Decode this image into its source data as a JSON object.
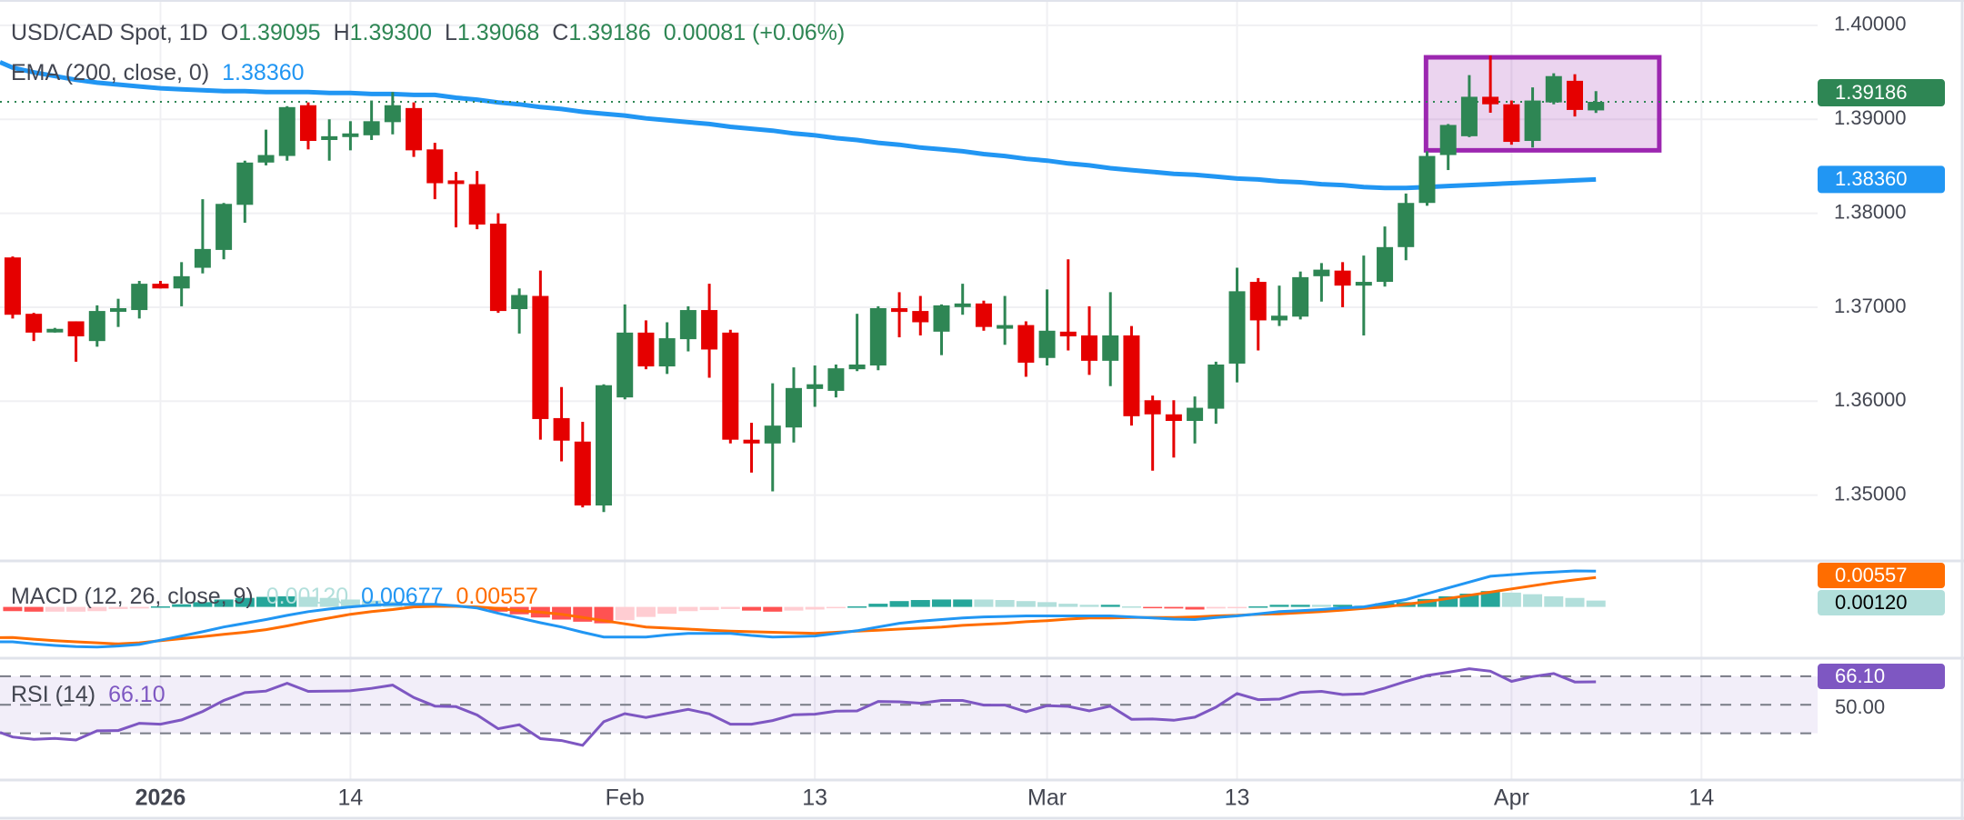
{
  "header": {
    "symbol": "USD/CAD Spot, 1D",
    "o_label": "O",
    "o": "1.39095",
    "h_label": "H",
    "h": "1.39300",
    "l_label": "L",
    "l": "1.39068",
    "c_label": "C",
    "c": "1.39186",
    "change": "0.00081 (+0.06%)"
  },
  "indicators": {
    "ema": {
      "label": "EMA (200, close, 0)",
      "value": "1.38360"
    },
    "macd": {
      "label": "MACD (12, 26, close, 9)",
      "histogram": "0.00120",
      "macd": "0.00677",
      "signal": "0.00557"
    },
    "rsi": {
      "label": "RSI (14)",
      "value": "66.10"
    }
  },
  "price_axis": {
    "ticks": [
      "1.40000",
      "1.39000",
      "1.38000",
      "1.37000",
      "1.36000",
      "1.35000"
    ],
    "current_price_label": "1.39186",
    "ema_label": "1.38360"
  },
  "macd_axis": {
    "signal_label": "0.00557",
    "histogram_label": "0.00120"
  },
  "rsi_axis": {
    "level_label": "50.00",
    "value_label": "66.10"
  },
  "colors": {
    "up": "#2e8654",
    "down": "#e50000",
    "ema": "#2196f3",
    "macd": "#2196f3",
    "signal": "#ff6d00",
    "hist_up_strong": "#26a69a",
    "hist_up_weak": "#b2dfdb",
    "hist_down_strong": "#ff5252",
    "hist_down_weak": "#ffcdd2",
    "rsi": "#7e57c2",
    "highlight_box": "#9c27b0",
    "grid": "#f0f0f3",
    "text": "#434651"
  },
  "chart_data": {
    "type": "candlestick",
    "ylim": [
      1.343,
      1.4027
    ],
    "xlim": [
      -0.6,
      85.5
    ],
    "y_ticks": [
      1.35,
      1.36,
      1.37,
      1.38,
      1.39,
      1.4
    ],
    "x_ticks": [
      {
        "label": "2026",
        "index": 7,
        "bold": true
      },
      {
        "label": "14",
        "index": 16
      },
      {
        "label": "Feb",
        "index": 29
      },
      {
        "label": "13",
        "index": 38
      },
      {
        "label": "Mar",
        "index": 49
      },
      {
        "label": "13",
        "index": 58
      },
      {
        "label": "Apr",
        "index": 71
      },
      {
        "label": "14",
        "index": 80
      }
    ],
    "ohlc": [
      [
        1.3753,
        1.3754,
        1.3688,
        1.3692
      ],
      [
        1.3693,
        1.3694,
        1.3664,
        1.3673
      ],
      [
        1.3675,
        1.3678,
        1.3673,
        1.3677
      ],
      [
        1.3685,
        1.3685,
        1.3642,
        1.3669
      ],
      [
        1.3664,
        1.3702,
        1.3658,
        1.3696
      ],
      [
        1.3696,
        1.3709,
        1.3679,
        1.3699
      ],
      [
        1.3697,
        1.3728,
        1.3688,
        1.3725
      ],
      [
        1.3725,
        1.3728,
        1.372,
        1.372
      ],
      [
        1.372,
        1.3748,
        1.3701,
        1.3733
      ],
      [
        1.3742,
        1.3815,
        1.3736,
        1.3762
      ],
      [
        1.3761,
        1.3811,
        1.3751,
        1.381
      ],
      [
        1.3809,
        1.3856,
        1.379,
        1.3854
      ],
      [
        1.3854,
        1.3889,
        1.3851,
        1.3862
      ],
      [
        1.3861,
        1.3914,
        1.3856,
        1.3913
      ],
      [
        1.3915,
        1.3918,
        1.3868,
        1.3877
      ],
      [
        1.3878,
        1.39,
        1.3856,
        1.3882
      ],
      [
        1.3884,
        1.3898,
        1.3867,
        1.3885
      ],
      [
        1.3883,
        1.392,
        1.3878,
        1.3898
      ],
      [
        1.3897,
        1.3929,
        1.3884,
        1.3915
      ],
      [
        1.3912,
        1.3918,
        1.386,
        1.3867
      ],
      [
        1.3868,
        1.3875,
        1.3815,
        1.3832
      ],
      [
        1.3835,
        1.3844,
        1.3785,
        1.3833
      ],
      [
        1.3831,
        1.3845,
        1.3783,
        1.3788
      ],
      [
        1.3789,
        1.38,
        1.3694,
        1.3696
      ],
      [
        1.3698,
        1.372,
        1.3672,
        1.3713
      ],
      [
        1.3712,
        1.3739,
        1.3559,
        1.3581
      ],
      [
        1.3582,
        1.3615,
        1.3536,
        1.3558
      ],
      [
        1.3557,
        1.3578,
        1.3487,
        1.3489
      ],
      [
        1.3489,
        1.3618,
        1.3482,
        1.3617
      ],
      [
        1.3604,
        1.3703,
        1.3602,
        1.3673
      ],
      [
        1.3673,
        1.3686,
        1.3634,
        1.3637
      ],
      [
        1.3637,
        1.3684,
        1.3629,
        1.3667
      ],
      [
        1.3666,
        1.3701,
        1.3653,
        1.3697
      ],
      [
        1.3697,
        1.3725,
        1.3625,
        1.3655
      ],
      [
        1.3673,
        1.3676,
        1.3555,
        1.3559
      ],
      [
        1.3559,
        1.3577,
        1.3524,
        1.3555
      ],
      [
        1.3555,
        1.3619,
        1.3504,
        1.3574
      ],
      [
        1.3572,
        1.3636,
        1.3556,
        1.3614
      ],
      [
        1.3613,
        1.3638,
        1.3594,
        1.3618
      ],
      [
        1.3611,
        1.3639,
        1.3604,
        1.3635
      ],
      [
        1.3634,
        1.3693,
        1.3632,
        1.3639
      ],
      [
        1.3638,
        1.3701,
        1.3633,
        1.3699
      ],
      [
        1.3699,
        1.3716,
        1.3668,
        1.3695
      ],
      [
        1.3696,
        1.3712,
        1.367,
        1.3684
      ],
      [
        1.3674,
        1.3703,
        1.3649,
        1.3702
      ],
      [
        1.3703,
        1.3725,
        1.3692,
        1.3704
      ],
      [
        1.3704,
        1.3707,
        1.3675,
        1.3679
      ],
      [
        1.368,
        1.3712,
        1.366,
        1.3681
      ],
      [
        1.3681,
        1.3685,
        1.3626,
        1.3641
      ],
      [
        1.3646,
        1.3719,
        1.3638,
        1.3675
      ],
      [
        1.3674,
        1.3751,
        1.3654,
        1.3669
      ],
      [
        1.367,
        1.3701,
        1.3628,
        1.3643
      ],
      [
        1.3643,
        1.3716,
        1.3616,
        1.367
      ],
      [
        1.367,
        1.368,
        1.3574,
        1.3584
      ],
      [
        1.3601,
        1.3606,
        1.3526,
        1.3586
      ],
      [
        1.3586,
        1.3601,
        1.354,
        1.3579
      ],
      [
        1.3579,
        1.3605,
        1.3555,
        1.3593
      ],
      [
        1.3592,
        1.3642,
        1.3576,
        1.3639
      ],
      [
        1.364,
        1.3742,
        1.362,
        1.3717
      ],
      [
        1.3727,
        1.3731,
        1.3654,
        1.3686
      ],
      [
        1.3686,
        1.3723,
        1.368,
        1.3691
      ],
      [
        1.369,
        1.3738,
        1.3687,
        1.3732
      ],
      [
        1.3733,
        1.3747,
        1.3706,
        1.374
      ],
      [
        1.3739,
        1.3748,
        1.37,
        1.3723
      ],
      [
        1.3723,
        1.3755,
        1.367,
        1.3727
      ],
      [
        1.3727,
        1.3786,
        1.3722,
        1.3764
      ],
      [
        1.3764,
        1.3821,
        1.375,
        1.3811
      ],
      [
        1.3811,
        1.3866,
        1.3808,
        1.3861
      ],
      [
        1.3862,
        1.3895,
        1.3846,
        1.3894
      ],
      [
        1.3882,
        1.3947,
        1.3881,
        1.3924
      ],
      [
        1.3924,
        1.3968,
        1.3907,
        1.3916
      ],
      [
        1.3916,
        1.392,
        1.3873,
        1.3876
      ],
      [
        1.3877,
        1.3934,
        1.387,
        1.392
      ],
      [
        1.3918,
        1.3949,
        1.3916,
        1.3946
      ],
      [
        1.3941,
        1.3948,
        1.3903,
        1.391
      ],
      [
        1.39095,
        1.393,
        1.39068,
        1.39186
      ]
    ],
    "ema200": [
      1.3955,
      1.395,
      1.3946,
      1.3942,
      1.3939,
      1.3937,
      1.3935,
      1.3933,
      1.3932,
      1.3931,
      1.393,
      1.393,
      1.3929,
      1.3929,
      1.3929,
      1.3928,
      1.3928,
      1.3927,
      1.3927,
      1.3926,
      1.3926,
      1.3923,
      1.3921,
      1.3918,
      1.3916,
      1.3913,
      1.3911,
      1.3908,
      1.3906,
      1.3904,
      1.3901,
      1.3899,
      1.3897,
      1.3895,
      1.3892,
      1.389,
      1.3888,
      1.3885,
      1.3883,
      1.388,
      1.3878,
      1.3875,
      1.3873,
      1.387,
      1.3868,
      1.3866,
      1.3863,
      1.3861,
      1.3858,
      1.3856,
      1.3853,
      1.3851,
      1.3848,
      1.3846,
      1.3844,
      1.3842,
      1.3841,
      1.3839,
      1.3837,
      1.3836,
      1.3834,
      1.3833,
      1.3831,
      1.383,
      1.3828,
      1.3827,
      1.3827,
      1.3828,
      1.3829,
      1.383,
      1.3831,
      1.3832,
      1.3833,
      1.3834,
      1.3835,
      1.3836
    ],
    "highlight_box": {
      "from_index": 67,
      "to_index": 78,
      "price_high": 1.3966,
      "price_low": 1.3867
    },
    "macd": {
      "ylim": [
        -0.0097,
        0.0087
      ],
      "macd": [
        -0.0066,
        -0.007,
        -0.0073,
        -0.0075,
        -0.0076,
        -0.0074,
        -0.0071,
        -0.0063,
        -0.0055,
        -0.0047,
        -0.0038,
        -0.0031,
        -0.0024,
        -0.0016,
        -0.0009,
        -0.0004,
        0.0,
        0.0003,
        0.0005,
        0.0005,
        0.0005,
        0.0002,
        -0.0002,
        -0.0012,
        -0.0021,
        -0.003,
        -0.0038,
        -0.0048,
        -0.0057,
        -0.0057,
        -0.0057,
        -0.0053,
        -0.005,
        -0.005,
        -0.005,
        -0.0054,
        -0.0057,
        -0.0056,
        -0.0055,
        -0.005,
        -0.0045,
        -0.0038,
        -0.0031,
        -0.0027,
        -0.0024,
        -0.0021,
        -0.0019,
        -0.0018,
        -0.0017,
        -0.0017,
        -0.0017,
        -0.0017,
        -0.0017,
        -0.0019,
        -0.0021,
        -0.0023,
        -0.0024,
        -0.002,
        -0.0017,
        -0.0013,
        -0.0009,
        -0.0007,
        -0.0005,
        -0.0002,
        0.0,
        0.0007,
        0.0014,
        0.0025,
        0.0036,
        0.0047,
        0.0058,
        0.0061,
        0.0064,
        0.0066,
        0.0068,
        0.00677
      ],
      "signal": [
        -0.0058,
        -0.0061,
        -0.0064,
        -0.0066,
        -0.0068,
        -0.007,
        -0.0068,
        -0.0064,
        -0.006,
        -0.0056,
        -0.0052,
        -0.0048,
        -0.0043,
        -0.0036,
        -0.0028,
        -0.0021,
        -0.0014,
        -0.0009,
        -0.0005,
        0.0,
        0.0001,
        0.0001,
        0.0,
        -0.0003,
        -0.0007,
        -0.001,
        -0.0014,
        -0.002,
        -0.0026,
        -0.0032,
        -0.0038,
        -0.004,
        -0.0042,
        -0.0044,
        -0.0046,
        -0.0047,
        -0.0048,
        -0.0049,
        -0.005,
        -0.0048,
        -0.0046,
        -0.0044,
        -0.0042,
        -0.004,
        -0.0038,
        -0.0035,
        -0.0033,
        -0.0031,
        -0.0028,
        -0.0026,
        -0.0023,
        -0.0021,
        -0.0021,
        -0.002,
        -0.002,
        -0.002,
        -0.0019,
        -0.0017,
        -0.0016,
        -0.0014,
        -0.0013,
        -0.0011,
        -0.0009,
        -0.0006,
        -0.0003,
        0.0,
        0.0005,
        0.001,
        0.0016,
        0.0022,
        0.0028,
        0.0034,
        0.004,
        0.0046,
        0.0051,
        0.00557
      ]
    },
    "rsi": {
      "ylim": [
        -2.8,
        82.7
      ],
      "levels": [
        70,
        50,
        30
      ],
      "values": [
        27.4,
        25.7,
        26.4,
        25.3,
        31.7,
        31.9,
        37,
        36.4,
        39.4,
        45.3,
        53,
        58.5,
        59.6,
        65.1,
        59.4,
        59.6,
        59.8,
        61.5,
        63.8,
        55.1,
        49.1,
        48.7,
        42.8,
        33.2,
        36,
        26.2,
        24.9,
        21.5,
        38.1,
        43.8,
        41.1,
        44,
        46.8,
        43.6,
        36.4,
        36.4,
        38.9,
        43,
        43.4,
        45.5,
        45.7,
        52.3,
        52.1,
        51.1,
        53,
        53,
        49.8,
        49.8,
        45.1,
        49.4,
        48.9,
        45.7,
        49.1,
        39.8,
        40,
        39.1,
        41.3,
        48.3,
        57.9,
        53.6,
        54,
        58.7,
        59.4,
        57.2,
        57.7,
        61.7,
        66.4,
        70.6,
        72.8,
        75.3,
        73.6,
        66.4,
        69.8,
        71.9,
        66,
        66.1
      ]
    }
  }
}
